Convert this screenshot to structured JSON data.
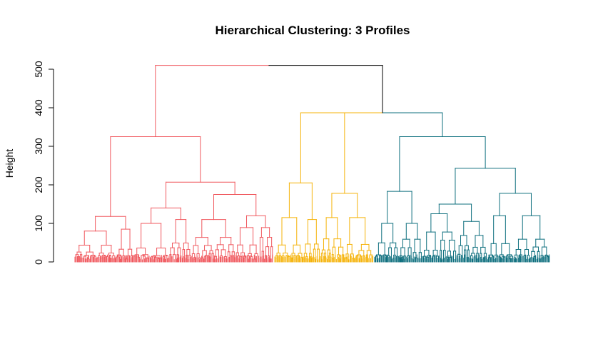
{
  "chart_data": {
    "type": "dendrogram",
    "title": "Hierarchical Clustering: 3 Profiles",
    "xlabel": "",
    "ylabel": "Height",
    "ylim": [
      0,
      500
    ],
    "yticks": [
      0,
      100,
      200,
      300,
      400,
      500
    ],
    "grid": false,
    "n_clusters": 3,
    "cluster_colors": [
      "#F0595F",
      "#F5B30A",
      "#0E6F7E"
    ],
    "root_color": "#000000",
    "merges": [
      {
        "name": "root",
        "height": 510,
        "color": "#000000"
      },
      {
        "name": "cluster-2-3",
        "height": 387,
        "color": "#000000"
      },
      {
        "name": "cluster-1",
        "height": 325,
        "color": "#F0595F"
      },
      {
        "name": "cluster-1-left",
        "height": 118,
        "color": "#F0595F"
      },
      {
        "name": "cluster-1-right",
        "height": 207,
        "color": "#F0595F"
      },
      {
        "name": "cluster-1-right-b",
        "height": 175,
        "color": "#F0595F"
      },
      {
        "name": "cluster-2",
        "height": 387,
        "color": "#F5B30A"
      },
      {
        "name": "cluster-2-left",
        "height": 205,
        "color": "#F5B30A"
      },
      {
        "name": "cluster-2-right",
        "height": 178,
        "color": "#F5B30A"
      },
      {
        "name": "cluster-3",
        "height": 325,
        "color": "#0E6F7E"
      },
      {
        "name": "cluster-3-left",
        "height": 183,
        "color": "#0E6F7E"
      },
      {
        "name": "cluster-3-right",
        "height": 243,
        "color": "#0E6F7E"
      },
      {
        "name": "cluster-3-right-b",
        "height": 178,
        "color": "#0E6F7E"
      }
    ]
  }
}
